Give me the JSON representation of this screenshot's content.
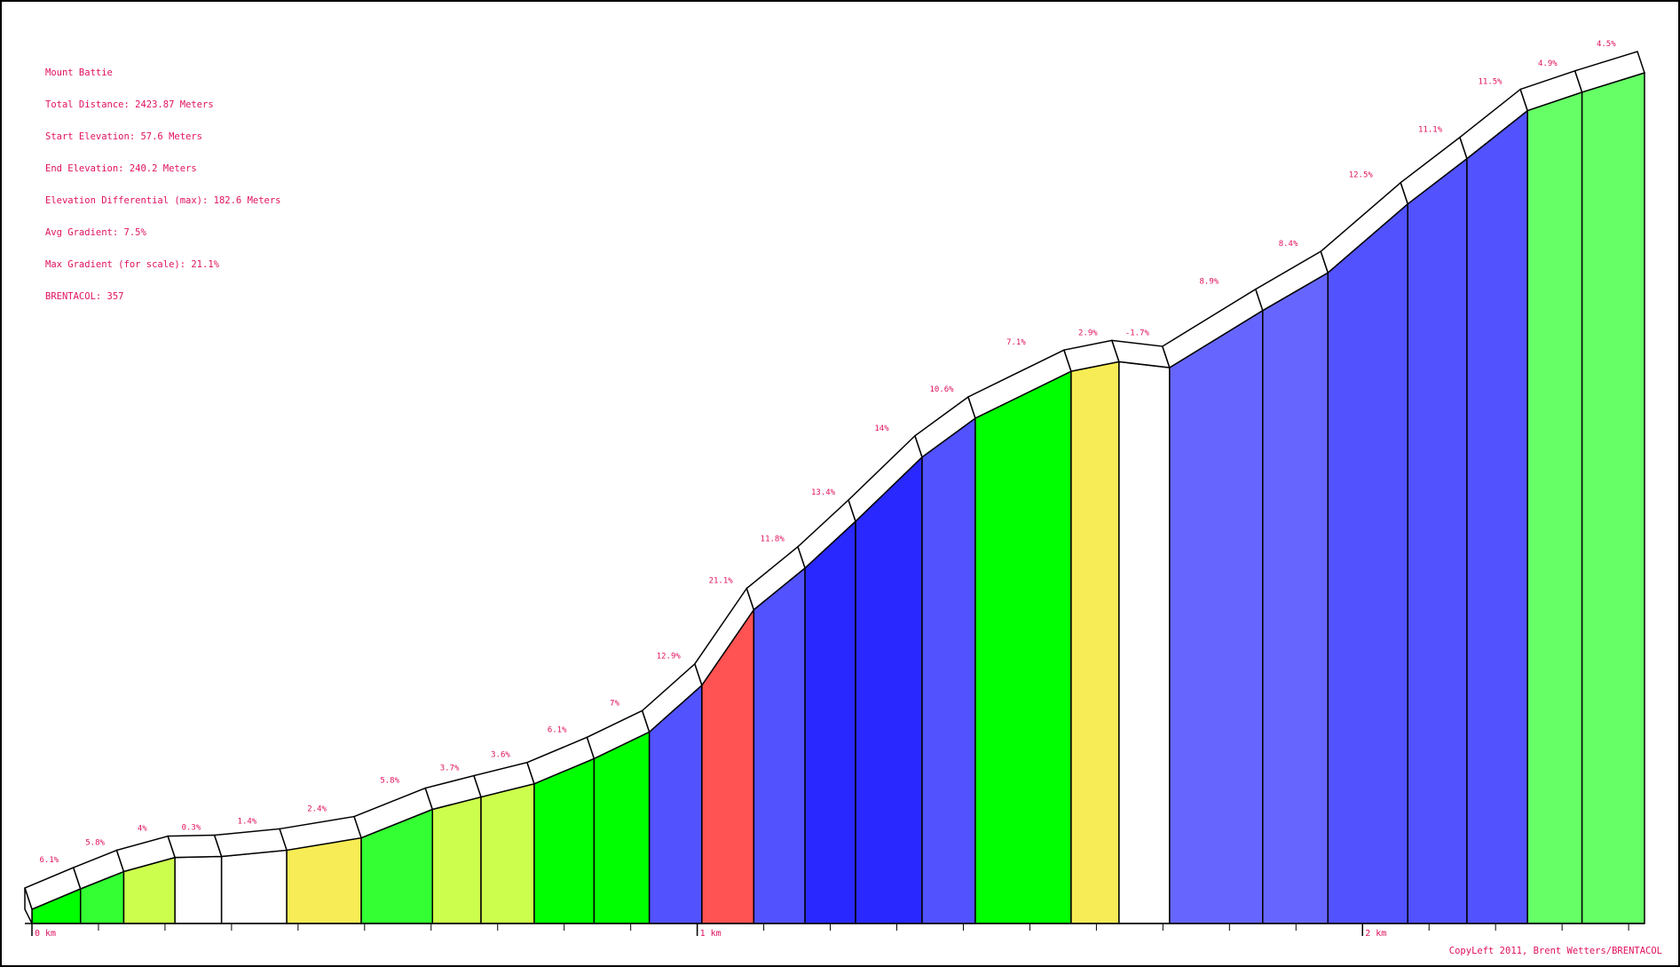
{
  "info": {
    "title": "Mount Battie",
    "total_distance": "Total Distance: 2423.87 Meters",
    "start_elevation": "Start Elevation: 57.6 Meters",
    "end_elevation": "End Elevation: 240.2 Meters",
    "elevation_diff": "Elevation Differential (max): 182.6 Meters",
    "avg_gradient": "Avg Gradient: 7.5%",
    "max_gradient": "Max Gradient (for scale): 21.1%",
    "brentacol": "BRENTACOL: 357"
  },
  "copyleft": "CopyLeft 2011, Brent Wetters/BRENTACOL",
  "chart_data": {
    "type": "area",
    "title": "Mount Battie",
    "xlabel": "",
    "ylabel": "",
    "x_unit": "m",
    "y_unit": "m",
    "xlim": [
      0,
      2423.87
    ],
    "x_ticks": [
      {
        "value": 0,
        "label": "0 km"
      },
      {
        "value": 1000,
        "label": "1 km"
      },
      {
        "value": 2000,
        "label": "2 km"
      }
    ],
    "segments": [
      {
        "start": 0,
        "end": 73,
        "gradient": 6.1,
        "label": "6.1%",
        "color": "#00ff00"
      },
      {
        "start": 73,
        "end": 138,
        "gradient": 5.8,
        "label": "5.8%",
        "color": "#33ff33"
      },
      {
        "start": 138,
        "end": 215,
        "gradient": 4,
        "label": "4%",
        "color": "#ccff4d"
      },
      {
        "start": 215,
        "end": 285,
        "gradient": 0.3,
        "label": "0.3%",
        "color": "#ffffff"
      },
      {
        "start": 285,
        "end": 383,
        "gradient": 1.4,
        "label": "1.4%",
        "color": "#ffffff"
      },
      {
        "start": 383,
        "end": 495,
        "gradient": 2.4,
        "label": "2.4%",
        "color": "#f7ec55"
      },
      {
        "start": 495,
        "end": 602,
        "gradient": 5.8,
        "label": "5.8%",
        "color": "#33ff33"
      },
      {
        "start": 602,
        "end": 675,
        "gradient": 3.7,
        "label": "3.7%",
        "color": "#ccff4d"
      },
      {
        "start": 675,
        "end": 755,
        "gradient": 3.6,
        "label": "3.6%",
        "color": "#ccff4d"
      },
      {
        "start": 755,
        "end": 845,
        "gradient": 6.1,
        "label": "6.1%",
        "color": "#00ff00"
      },
      {
        "start": 845,
        "end": 928,
        "gradient": 7,
        "label": "7%",
        "color": "#00ff00"
      },
      {
        "start": 928,
        "end": 1007,
        "gradient": 12.9,
        "label": "12.9%",
        "color": "#5252ff"
      },
      {
        "start": 1007,
        "end": 1085,
        "gradient": 21.1,
        "label": "21.1%",
        "color": "#ff5252"
      },
      {
        "start": 1085,
        "end": 1162,
        "gradient": 11.8,
        "label": "11.8%",
        "color": "#5252ff"
      },
      {
        "start": 1162,
        "end": 1238,
        "gradient": 13.4,
        "label": "13.4%",
        "color": "#2929ff"
      },
      {
        "start": 1238,
        "end": 1338,
        "gradient": 14,
        "label": "14%",
        "color": "#2929ff"
      },
      {
        "start": 1338,
        "end": 1418,
        "gradient": 10.6,
        "label": "10.6%",
        "color": "#5252ff"
      },
      {
        "start": 1418,
        "end": 1562,
        "gradient": 7.1,
        "label": "7.1%",
        "color": "#00ff00"
      },
      {
        "start": 1562,
        "end": 1634,
        "gradient": 2.9,
        "label": "2.9%",
        "color": "#f7ec55"
      },
      {
        "start": 1634,
        "end": 1710,
        "gradient": -1.7,
        "label": "-1.7%",
        "color": "#ffffff"
      },
      {
        "start": 1710,
        "end": 1850,
        "gradient": 8.9,
        "label": "8.9%",
        "color": "#6666ff"
      },
      {
        "start": 1850,
        "end": 1948,
        "gradient": 8.4,
        "label": "8.4%",
        "color": "#6666ff"
      },
      {
        "start": 1948,
        "end": 2068,
        "gradient": 12.5,
        "label": "12.5%",
        "color": "#5252ff"
      },
      {
        "start": 2068,
        "end": 2157,
        "gradient": 11.1,
        "label": "11.1%",
        "color": "#5252ff"
      },
      {
        "start": 2157,
        "end": 2248,
        "gradient": 11.5,
        "label": "11.5%",
        "color": "#5252ff"
      },
      {
        "start": 2248,
        "end": 2330,
        "gradient": 4.9,
        "label": "4.9%",
        "color": "#66ff66"
      },
      {
        "start": 2330,
        "end": 2423.87,
        "gradient": 4.5,
        "label": "4.5%",
        "color": "#66ff66"
      }
    ]
  }
}
